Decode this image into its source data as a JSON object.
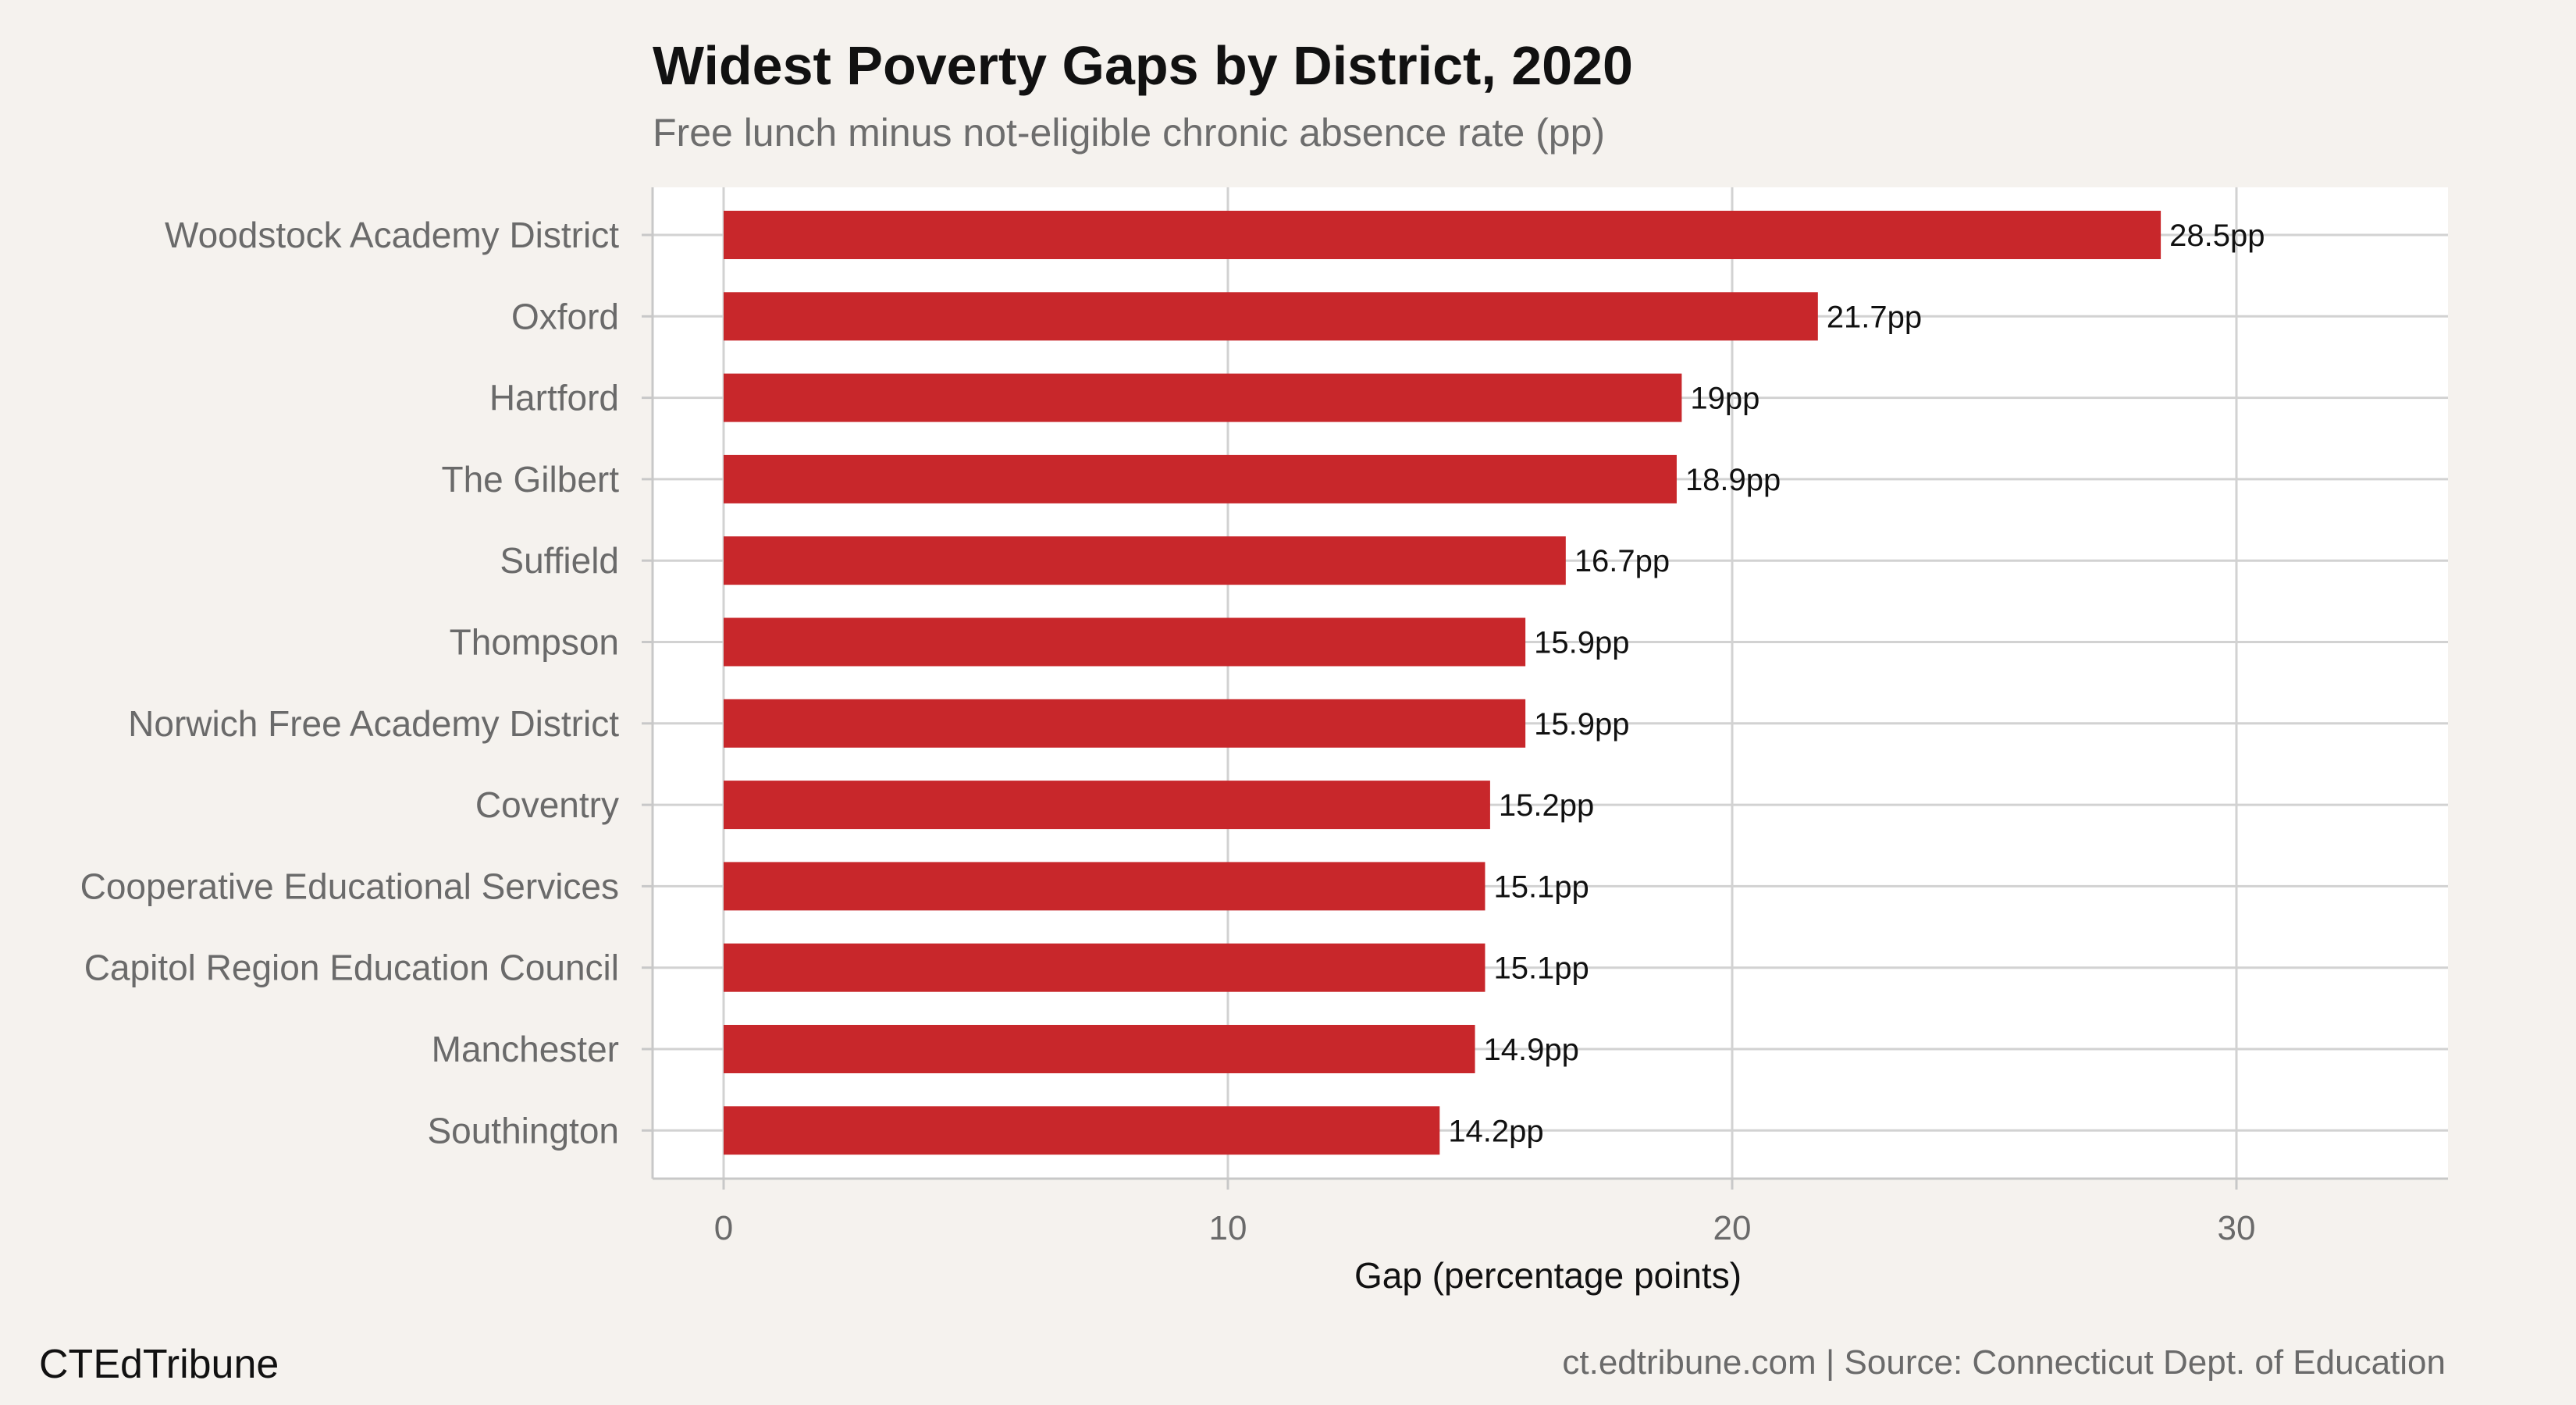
{
  "chart_data": {
    "type": "bar",
    "orientation": "horizontal",
    "title": "Widest Poverty Gaps by District, 2020",
    "subtitle": "Free lunch minus not-eligible chronic absence rate (pp)",
    "xlabel": "Gap (percentage points)",
    "ylabel": "",
    "xlim": [
      0,
      34
    ],
    "xticks": [
      0,
      10,
      20,
      30
    ],
    "xtick_labels": [
      "0",
      "10",
      "20",
      "30"
    ],
    "grid": true,
    "value_suffix": "pp",
    "bar_color": "#c8272b",
    "categories": [
      "Woodstock Academy District",
      "Oxford",
      "Hartford",
      "The Gilbert",
      "Suffield",
      "Thompson",
      "Norwich Free Academy District",
      "Coventry",
      "Cooperative Educational Services",
      "Capitol Region Education Council",
      "Manchester",
      "Southington"
    ],
    "values": [
      28.5,
      21.7,
      19,
      18.9,
      16.7,
      15.9,
      15.9,
      15.2,
      15.1,
      15.1,
      14.9,
      14.2
    ],
    "data_labels": [
      "28.5pp",
      "21.7pp",
      "19pp",
      "18.9pp",
      "16.7pp",
      "15.9pp",
      "15.9pp",
      "15.2pp",
      "15.1pp",
      "15.1pp",
      "14.9pp",
      "14.2pp"
    ]
  },
  "footer": {
    "brand": "CTEdTribune",
    "source": "ct.edtribune.com | Source: Connecticut Dept. of Education"
  }
}
